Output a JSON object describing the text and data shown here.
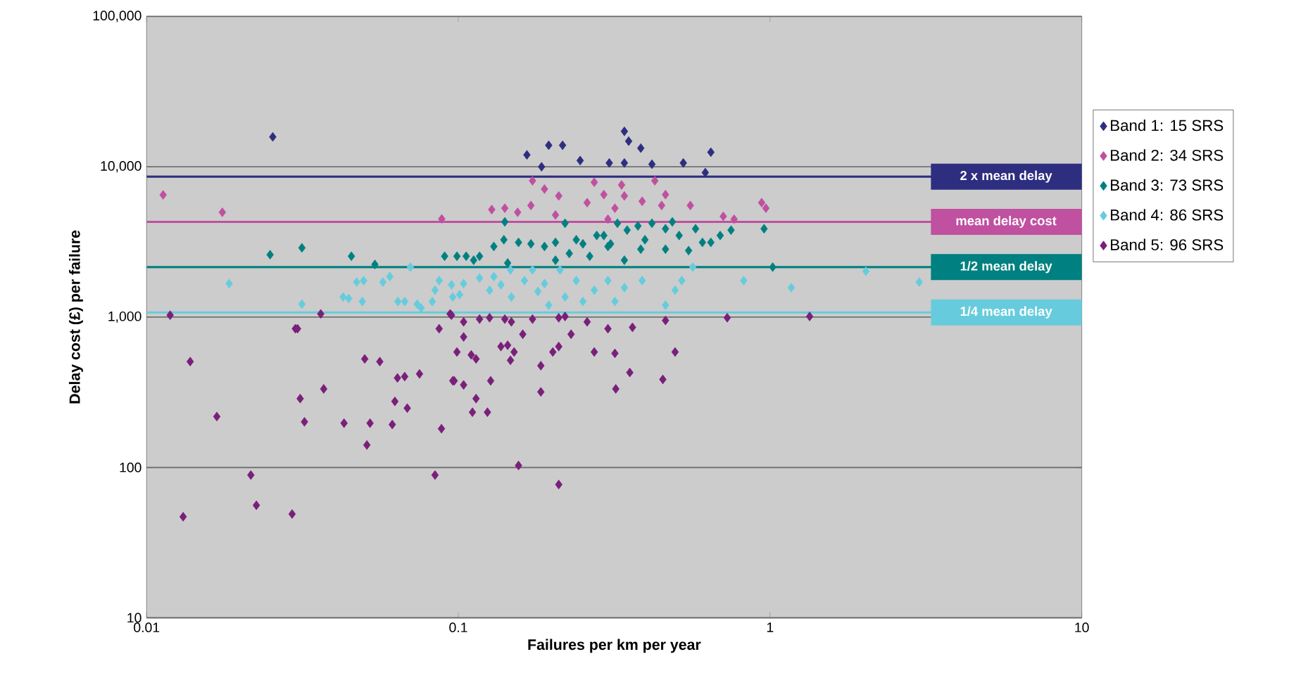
{
  "chart_data": {
    "type": "scatter",
    "xlabel": "Failures per km per year",
    "ylabel": "Delay cost (£) per failure",
    "log": "xy",
    "grid": "y",
    "legend": "right",
    "marker": "diamond",
    "xlim": [
      0.01,
      10
    ],
    "xticks": [
      0.01,
      0.1,
      1,
      10
    ],
    "ylim": [
      10,
      100000
    ],
    "yticks": [
      10,
      100,
      {
        "value": 1000,
        "label": "1,000"
      },
      {
        "value": 10000,
        "label": "10,000"
      },
      {
        "value": 100000,
        "label": "100,000"
      }
    ],
    "ref_lines": [
      {
        "axis": "y",
        "value": 8600,
        "label": "2 x mean delay",
        "color": "#2e2e80"
      },
      {
        "axis": "y",
        "value": 4300,
        "label": "mean delay cost",
        "color": "#c050a0"
      },
      {
        "axis": "y",
        "value": 2150,
        "label": "1/2 mean delay",
        "color": "#008080"
      },
      {
        "axis": "y",
        "value": 1075,
        "label": "1/4 mean delay",
        "color": "#66ccdd"
      }
    ],
    "series": [
      {
        "name": "Band 1: 15 SRS",
        "color": "#2e2e80",
        "x": [
          0.0254,
          0.166,
          0.185,
          0.195,
          0.216,
          0.246,
          0.305,
          0.341,
          0.341,
          0.352,
          0.385,
          0.418,
          0.527,
          0.646,
          0.62
        ],
        "values": [
          15800,
          12000,
          10000,
          13900,
          13900,
          11000,
          10600,
          10600,
          17200,
          14800,
          13300,
          10400,
          10600,
          12500,
          9150
        ]
      },
      {
        "name": "Band 2: 34 SRS",
        "color": "#c050a0",
        "x": [
          0.0113,
          0.0175,
          0.0885,
          0.173,
          0.189,
          0.21,
          0.128,
          0.141,
          0.155,
          0.171,
          0.205,
          0.273,
          0.293,
          0.259,
          0.334,
          0.341,
          0.318,
          0.389,
          0.427,
          0.462,
          0.449,
          0.555,
          0.94,
          0.708,
          0.767,
          0.302,
          0.97
        ],
        "values": [
          6500,
          4980,
          4500,
          8070,
          7110,
          6400,
          5190,
          5300,
          4980,
          5530,
          4780,
          7890,
          6530,
          5770,
          7570,
          6400,
          5300,
          5890,
          8070,
          6530,
          5530,
          5530,
          5770,
          4680,
          4480,
          4480,
          5300
        ]
      },
      {
        "name": "Band 3: 73 SRS",
        "color": "#008080",
        "x": [
          0.0249,
          0.0315,
          0.0454,
          0.054,
          0.0904,
          0.099,
          0.106,
          0.117,
          0.141,
          0.14,
          0.156,
          0.171,
          0.189,
          0.205,
          0.22,
          0.227,
          0.251,
          0.264,
          0.302,
          0.324,
          0.348,
          0.377,
          0.385,
          0.418,
          0.462,
          0.462,
          0.486,
          0.511,
          0.548,
          0.577,
          0.607,
          0.646,
          0.692,
          0.75,
          0.957,
          1.02,
          0.308,
          0.293,
          0.239,
          0.13,
          0.112,
          0.144,
          0.205,
          0.341,
          0.397,
          0.278
        ],
        "values": [
          2600,
          2890,
          2540,
          2240,
          2540,
          2540,
          2540,
          2540,
          4300,
          3270,
          3140,
          3070,
          2950,
          3140,
          4210,
          2650,
          3070,
          2540,
          2950,
          4210,
          3790,
          4040,
          2830,
          4210,
          3870,
          2830,
          4300,
          3490,
          2770,
          3870,
          3140,
          3140,
          3490,
          3790,
          3870,
          2150,
          3070,
          3490,
          3270,
          2950,
          2390,
          2290,
          2390,
          2390,
          3270,
          3490
        ]
      },
      {
        "name": "Band 4: 86 SRS",
        "color": "#66ccdd",
        "x": [
          0.0184,
          0.0315,
          0.0427,
          0.0445,
          0.0492,
          0.0472,
          0.0497,
          0.0573,
          0.0603,
          0.0702,
          0.064,
          0.0673,
          0.0738,
          0.076,
          0.0825,
          0.0842,
          0.0868,
          0.0951,
          0.096,
          0.104,
          0.101,
          0.117,
          0.13,
          0.126,
          0.137,
          0.147,
          0.148,
          0.163,
          0.173,
          0.18,
          0.189,
          0.195,
          0.212,
          0.22,
          0.239,
          0.251,
          0.273,
          0.302,
          0.318,
          0.341,
          0.389,
          0.462,
          0.496,
          0.521,
          0.565,
          0.823,
          1.17,
          2.03,
          3.01
        ],
        "values": [
          1670,
          1220,
          1360,
          1330,
          1270,
          1710,
          1750,
          1710,
          1860,
          2150,
          1270,
          1270,
          1220,
          1150,
          1270,
          1510,
          1750,
          1640,
          1360,
          1670,
          1410,
          1820,
          1860,
          1510,
          1640,
          2060,
          1360,
          1750,
          2060,
          1480,
          1670,
          1200,
          2060,
          1360,
          1750,
          1270,
          1510,
          1750,
          1270,
          1570,
          1750,
          1200,
          1510,
          1750,
          2150,
          1750,
          1570,
          2020,
          1710
        ]
      },
      {
        "name": "Band 5: 96 SRS",
        "color": "#7a1f7a",
        "x": [
          0.0119,
          0.0138,
          0.0168,
          0.0131,
          0.0216,
          0.0225,
          0.0293,
          0.03,
          0.0305,
          0.0362,
          0.0311,
          0.0321,
          0.037,
          0.043,
          0.0501,
          0.056,
          0.0521,
          0.0509,
          0.0614,
          0.0626,
          0.0686,
          0.0638,
          0.0673,
          0.0751,
          0.0883,
          0.0842,
          0.0868,
          0.0951,
          0.099,
          0.097,
          0.0941,
          0.104,
          0.117,
          0.126,
          0.141,
          0.148,
          0.173,
          0.21,
          0.22,
          0.259,
          0.302,
          0.362,
          0.462,
          0.729,
          0.104,
          0.11,
          0.114,
          0.137,
          0.144,
          0.151,
          0.147,
          0.161,
          0.184,
          0.201,
          0.21,
          0.23,
          0.273,
          0.318,
          0.355,
          0.32,
          0.496,
          0.453,
          0.096,
          0.104,
          0.127,
          0.114,
          0.111,
          0.124,
          0.184,
          0.156,
          0.21,
          1.34
        ],
        "values": [
          1030,
          506,
          218,
          47,
          89,
          56,
          49,
          837,
          837,
          1050,
          287,
          201,
          333,
          197,
          527,
          506,
          197,
          141,
          193,
          275,
          248,
          394,
          402,
          419,
          181,
          89,
          837,
          1030,
          586,
          377,
          1050,
          930,
          970,
          990,
          970,
          930,
          970,
          990,
          1010,
          930,
          837,
          855,
          950,
          990,
          738,
          561,
          527,
          637,
          650,
          586,
          516,
          769,
          475,
          586,
          637,
          769,
          586,
          574,
          428,
          333,
          586,
          385,
          377,
          354,
          377,
          287,
          233,
          233,
          318,
          103,
          77,
          1010
        ]
      }
    ]
  }
}
